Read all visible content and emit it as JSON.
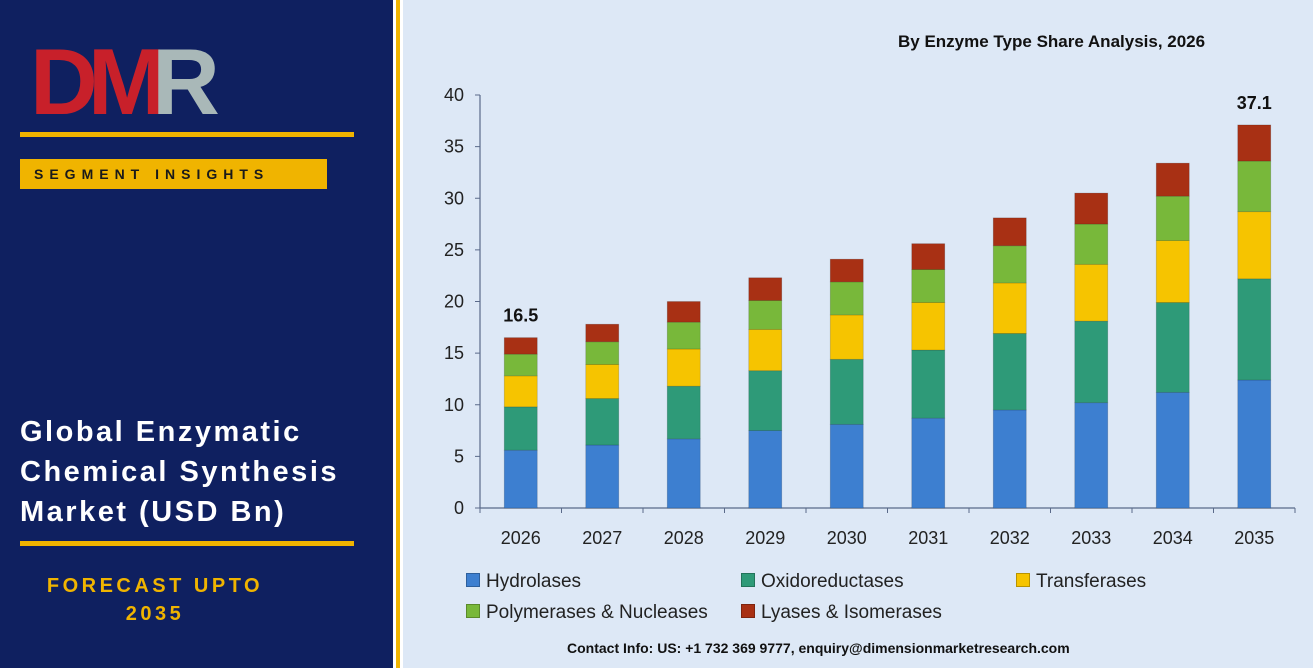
{
  "brand": {
    "logo_text": "DMR",
    "segment_label": "SEGMENT INSIGHTS",
    "market_title": "Global Enzymatic\nChemical Synthesis\nMarket (USD Bn)",
    "forecast_label": "FORECAST UPTO\n2035"
  },
  "colors": {
    "panel": "#0f2060",
    "accent": "#f0b400",
    "chart_bg": "#dde8f6",
    "logo_red": "#c8202a",
    "logo_grey": "#a9b8b8"
  },
  "contact": "Contact Info: US: +1 732 369 9777, enquiry@dimensionmarketresearch.com",
  "chart_data": {
    "type": "bar",
    "stacked": true,
    "title": "By Enzyme Type Share Analysis, 2026",
    "xlabel": "",
    "ylabel": "",
    "categories": [
      "2026",
      "2027",
      "2028",
      "2029",
      "2030",
      "2031",
      "2032",
      "2033",
      "2034",
      "2035"
    ],
    "ylim": [
      0,
      40
    ],
    "yticks": [
      0,
      5,
      10,
      15,
      20,
      25,
      30,
      35,
      40
    ],
    "grid": false,
    "legend_position": "bottom",
    "series": [
      {
        "name": "Hydrolases",
        "color": "#3d7fd0",
        "values": [
          5.6,
          6.1,
          6.7,
          7.5,
          8.1,
          8.7,
          9.5,
          10.2,
          11.2,
          12.4
        ]
      },
      {
        "name": "Oxidoreductases",
        "color": "#2e9a78",
        "values": [
          4.2,
          4.5,
          5.1,
          5.8,
          6.3,
          6.6,
          7.4,
          7.9,
          8.7,
          9.8
        ]
      },
      {
        "name": "Transferases",
        "color": "#f6c400",
        "values": [
          3.0,
          3.3,
          3.6,
          4.0,
          4.3,
          4.6,
          4.9,
          5.5,
          6.0,
          6.5
        ]
      },
      {
        "name": "Polymerases & Nucleases",
        "color": "#78b83a",
        "values": [
          2.1,
          2.2,
          2.6,
          2.8,
          3.2,
          3.2,
          3.6,
          3.9,
          4.3,
          4.9
        ]
      },
      {
        "name": "Lyases & Isomerases",
        "color": "#a83014",
        "values": [
          1.6,
          1.7,
          2.0,
          2.2,
          2.2,
          2.5,
          2.7,
          3.0,
          3.2,
          3.5
        ]
      }
    ],
    "data_labels": [
      {
        "category": "2026",
        "text": "16.5"
      },
      {
        "category": "2035",
        "text": "37.1"
      }
    ]
  }
}
